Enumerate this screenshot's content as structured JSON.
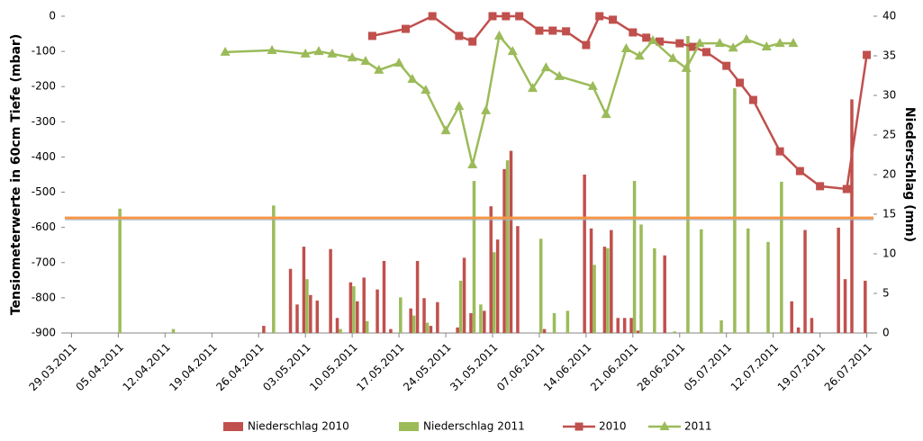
{
  "chart_data": {
    "type": "combo",
    "y_label": "Tensiometerwerte in 60cm Tiefe (mbar)",
    "y2_label": "Niederschlag (mm)",
    "xlim": [
      "28.03.2011",
      "27.07.2011"
    ],
    "xticks": [
      "29.03.2011",
      "05.04.2011",
      "12.04.2011",
      "19.04.2011",
      "26.04.2011",
      "03.05.2011",
      "10.05.2011",
      "17.05.2011",
      "24.05.2011",
      "31.05.2011",
      "07.06.2011",
      "14.06.2011",
      "21.06.2011",
      "28.06.2011",
      "05.07.2011",
      "12.07.2011",
      "19.07.2011",
      "26.07.2011"
    ],
    "ylim": [
      -900,
      0
    ],
    "yticks": [
      0,
      -100,
      -200,
      -300,
      -400,
      -500,
      -600,
      -700,
      -800,
      -900
    ],
    "y2lim": [
      0,
      40
    ],
    "y2ticks": [
      0,
      5,
      10,
      15,
      20,
      25,
      30,
      35,
      40
    ],
    "reference_line": {
      "value": -573,
      "color": "#f79646"
    },
    "legend": "bottom",
    "series": [
      {
        "name": "Niederschlag 2010",
        "type": "bar",
        "axis": "y2",
        "color": "#c0504d",
        "x": [
          "27.04.2011",
          "01.05.2011",
          "02.05.2011",
          "03.05.2011",
          "04.05.2011",
          "05.05.2011",
          "07.05.2011",
          "08.05.2011",
          "10.05.2011",
          "11.05.2011",
          "12.05.2011",
          "14.05.2011",
          "15.05.2011",
          "16.05.2011",
          "19.05.2011",
          "20.05.2011",
          "21.05.2011",
          "22.05.2011",
          "23.05.2011",
          "26.05.2011",
          "27.05.2011",
          "28.05.2011",
          "30.05.2011",
          "31.05.2011",
          "01.06.2011",
          "02.06.2011",
          "03.06.2011",
          "04.06.2011",
          "08.06.2011",
          "14.06.2011",
          "15.06.2011",
          "17.06.2011",
          "18.06.2011",
          "19.06.2011",
          "20.06.2011",
          "21.06.2011",
          "22.06.2011",
          "26.06.2011",
          "15.07.2011",
          "16.07.2011",
          "17.07.2011",
          "18.07.2011",
          "22.07.2011",
          "23.07.2011",
          "24.07.2011",
          "26.07.2011"
        ],
        "values": [
          0.9,
          8.1,
          3.6,
          10.9,
          4.8,
          4.1,
          10.6,
          1.9,
          6.4,
          4.0,
          7.0,
          5.5,
          9.1,
          0.5,
          3.1,
          9.1,
          4.4,
          0.9,
          3.9,
          0.7,
          9.5,
          2.5,
          2.8,
          16.0,
          11.8,
          20.7,
          23.0,
          13.5,
          0.5,
          20.0,
          13.2,
          10.9,
          13.0,
          1.9,
          1.9,
          1.9,
          0.3,
          9.8,
          4.0,
          0.7,
          13.0,
          1.9,
          13.3,
          6.8,
          29.5,
          6.6
        ]
      },
      {
        "name": "Niederschlag 2011",
        "type": "bar",
        "axis": "y2",
        "color": "#9bbb59",
        "x": [
          "05.04.2011",
          "13.04.2011",
          "28.04.2011",
          "03.05.2011",
          "08.05.2011",
          "10.05.2011",
          "12.05.2011",
          "17.05.2011",
          "19.05.2011",
          "21.05.2011",
          "26.05.2011",
          "28.05.2011",
          "29.05.2011",
          "31.05.2011",
          "02.06.2011",
          "07.06.2011",
          "09.06.2011",
          "11.06.2011",
          "15.06.2011",
          "17.06.2011",
          "21.06.2011",
          "22.06.2011",
          "24.06.2011",
          "27.06.2011",
          "29.06.2011",
          "01.07.2011",
          "04.07.2011",
          "06.07.2011",
          "08.07.2011",
          "11.07.2011",
          "13.07.2011"
        ],
        "values": [
          15.7,
          0.5,
          16.1,
          6.8,
          0.5,
          5.9,
          1.5,
          4.5,
          2.2,
          1.3,
          6.6,
          19.2,
          3.6,
          10.2,
          21.8,
          11.9,
          2.5,
          2.8,
          8.6,
          10.7,
          19.2,
          13.7,
          10.7,
          0.2,
          37.5,
          13.1,
          1.6,
          30.9,
          13.2,
          11.5,
          19.1
        ]
      },
      {
        "name": "2010",
        "type": "line",
        "marker": "square",
        "color": "#c0504d",
        "x": [
          "13.05.2011",
          "18.05.2011",
          "22.05.2011",
          "26.05.2011",
          "28.05.2011",
          "31.05.2011",
          "02.06.2011",
          "04.06.2011",
          "07.06.2011",
          "09.06.2011",
          "11.06.2011",
          "14.06.2011",
          "16.06.2011",
          "18.06.2011",
          "21.06.2011",
          "23.06.2011",
          "25.06.2011",
          "28.06.2011",
          "30.06.2011",
          "02.07.2011",
          "05.07.2011",
          "07.07.2011",
          "09.07.2011",
          "13.07.2011",
          "16.07.2011",
          "19.07.2011",
          "23.07.2011",
          "26.07.2011"
        ],
        "values": [
          -56,
          -36,
          0,
          -56,
          -72,
          0,
          0,
          0,
          -41,
          -41,
          -43,
          -82,
          0,
          -10,
          -46,
          -61,
          -72,
          -77,
          -87,
          -102,
          -141,
          -189,
          -238,
          -384,
          -440,
          -483,
          -491,
          -110
        ]
      },
      {
        "name": "2011",
        "type": "line",
        "marker": "triangle",
        "color": "#9bbb59",
        "x": [
          "21.04.2011",
          "28.04.2011",
          "03.05.2011",
          "05.05.2011",
          "07.05.2011",
          "10.05.2011",
          "12.05.2011",
          "14.05.2011",
          "17.05.2011",
          "19.05.2011",
          "21.05.2011",
          "24.05.2011",
          "26.05.2011",
          "28.05.2011",
          "30.05.2011",
          "01.06.2011",
          "03.06.2011",
          "06.06.2011",
          "08.06.2011",
          "10.06.2011",
          "15.06.2011",
          "17.06.2011",
          "20.06.2011",
          "22.06.2011",
          "24.06.2011",
          "27.06.2011",
          "29.06.2011",
          "01.07.2011",
          "04.07.2011",
          "06.07.2011",
          "08.07.2011",
          "11.07.2011",
          "13.07.2011",
          "15.07.2011"
        ],
        "values": [
          -102,
          -97,
          -107,
          -100,
          -107,
          -118,
          -128,
          -153,
          -133,
          -179,
          -210,
          -325,
          -256,
          -422,
          -268,
          -56,
          -100,
          -205,
          -146,
          -171,
          -199,
          -279,
          -92,
          -113,
          -69,
          -120,
          -148,
          -77,
          -77,
          -90,
          -66,
          -87,
          -77,
          -77
        ]
      }
    ]
  }
}
